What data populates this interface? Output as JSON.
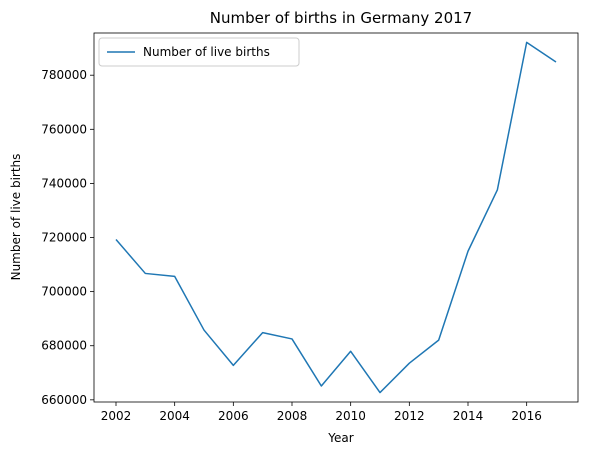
{
  "chart_data": {
    "type": "line",
    "title": "Number of births in Germany 2017",
    "xlabel": "Year",
    "ylabel": "Number of live births",
    "x": [
      2002,
      2003,
      2004,
      2005,
      2006,
      2007,
      2008,
      2009,
      2010,
      2011,
      2012,
      2013,
      2014,
      2015,
      2016,
      2017
    ],
    "series": [
      {
        "name": "Number of live births",
        "color": "#1f77b4",
        "values": [
          719250,
          706721,
          705622,
          685795,
          672724,
          684862,
          682514,
          665126,
          677947,
          662685,
          673544,
          682069,
          714927,
          737575,
          792141,
          784901
        ]
      }
    ],
    "xlim": [
      2001.25,
      2017.75
    ],
    "ylim": [
      659200,
      795600
    ],
    "xticks": [
      2002,
      2004,
      2006,
      2008,
      2010,
      2012,
      2014,
      2016
    ],
    "yticks": [
      660000,
      680000,
      700000,
      720000,
      740000,
      760000,
      780000
    ],
    "grid": false,
    "legend_position": "top-left"
  }
}
